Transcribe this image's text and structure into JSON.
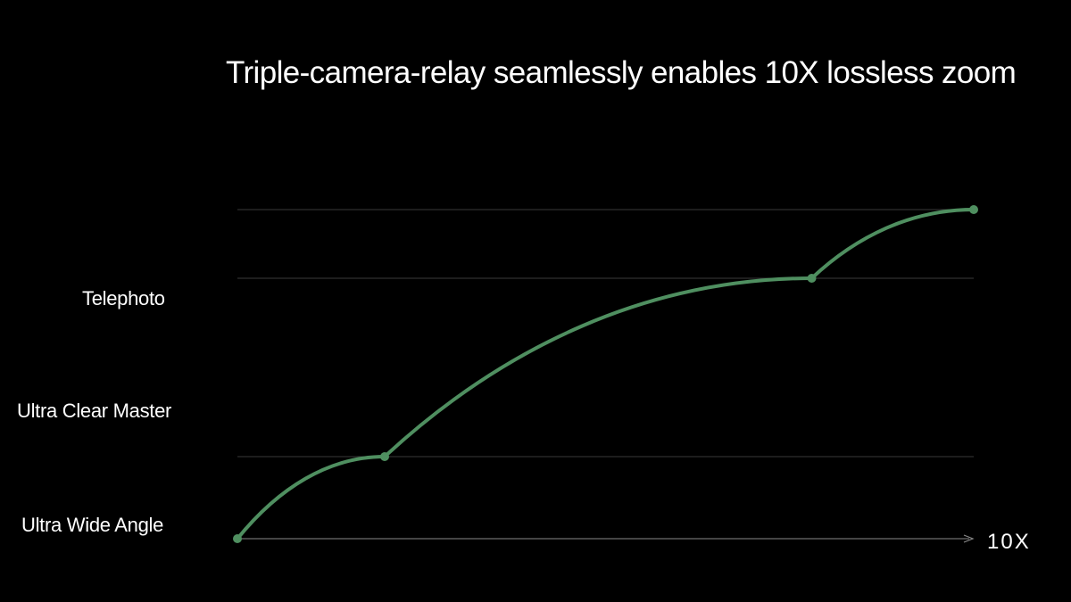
{
  "title": "Triple-camera-relay seamlessly enables 10X lossless zoom",
  "colors": {
    "background": "#000000",
    "curve": "#4f8f60",
    "gridline": "#3a3a3a",
    "axis": "#8a8a8a",
    "text": "#ffffff"
  },
  "chart_data": {
    "type": "line",
    "title": "Triple-camera-relay seamlessly enables 10X lossless zoom",
    "y_labels": [
      "Telephoto",
      "Ultra Clear Master",
      "Ultra Wide Angle"
    ],
    "x_end_label": "10X",
    "grid": true,
    "legend": "none",
    "series": [
      {
        "points": [
          {
            "x": 0,
            "y": 0
          },
          {
            "x": 0.2,
            "y": 1
          },
          {
            "x": 0.78,
            "y": 3
          },
          {
            "x": 1,
            "y": 4
          }
        ]
      }
    ]
  }
}
